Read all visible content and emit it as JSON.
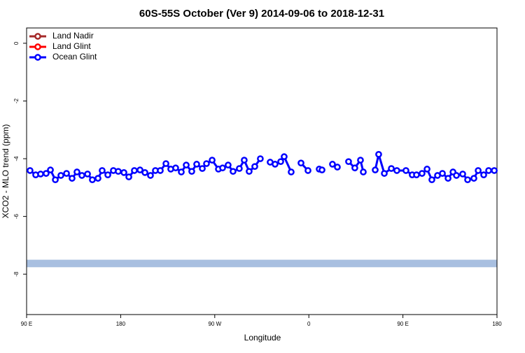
{
  "chart_data": {
    "type": "line",
    "title": "60S-55S October (Ver 9)   2014-09-06 to 2018-12-31",
    "x_label": "Longitude",
    "y_label": "XCO2 - MLO trend (ppm)",
    "xlim": [
      90,
      540
    ],
    "ylim": [
      -9.4,
      0.53
    ],
    "xticks": [
      {
        "value": 90,
        "label": "90 E"
      },
      180,
      {
        "value": 270,
        "label": "90 W"
      },
      {
        "value": 360,
        "label": "0"
      },
      {
        "value": 450,
        "label": "90 E"
      },
      {
        "value": 540,
        "label": "180"
      }
    ],
    "yticks": [
      0,
      -2,
      -4,
      -6,
      -8
    ],
    "legend": "top-left",
    "band": {
      "range": [
        -7.76,
        -7.5
      ],
      "color": "#a8bfe0"
    },
    "series": [
      {
        "name": "Land Nadir",
        "color": "#a52a2a",
        "x": [],
        "values": []
      },
      {
        "name": "Land Glint",
        "color": "#ff0000",
        "x": [],
        "values": []
      },
      {
        "name": "Ocean Glint",
        "color": "#0000ff",
        "x": [
          93.3,
          98.7,
          103.4,
          108.7,
          112.8,
          117.5,
          122.8,
          128.2,
          133.5,
          138.2,
          142.9,
          148.3,
          152.9,
          158.3,
          162.3,
          167.7,
          173,
          177.7,
          183.1,
          187.8,
          193.1,
          198.5,
          203.2,
          208.5,
          213.2,
          217.9,
          223.3,
          227.9,
          232.6,
          238,
          242.7,
          248,
          252.7,
          258.1,
          262.1,
          267.5,
          273.5,
          277.5,
          282.8,
          287.5,
          293.5,
          298.2,
          302.9,
          308.3,
          313.6,
          318,
          323,
          327.7,
          333.1,
          336.4,
          343.1,
          348,
          352.5,
          359.2,
          365,
          369.9,
          372.6,
          377,
          382.6,
          387.3,
          393,
          398,
          404,
          409.4,
          412.1,
          417,
          423.5,
          426.8,
          432.2,
          438.9,
          444.2,
          452.9,
          458.9,
          463,
          468.3,
          473.1,
          477.7,
          483.1,
          487.8,
          493.2,
          497.9,
          501.2,
          507.2,
          511.9,
          517.9,
          522,
          527.3,
          532,
          537.4
        ],
        "values": [
          -4.41,
          -4.56,
          -4.53,
          -4.51,
          -4.39,
          -4.73,
          -4.58,
          -4.51,
          -4.68,
          -4.46,
          -4.58,
          -4.53,
          -4.73,
          -4.68,
          -4.41,
          -4.56,
          -4.41,
          -4.44,
          -4.48,
          -4.63,
          -4.41,
          -4.39,
          -4.48,
          -4.58,
          -4.41,
          -4.41,
          -4.17,
          -4.36,
          -4.32,
          -4.46,
          -4.22,
          -4.44,
          -4.19,
          -4.34,
          -4.17,
          -4.05,
          -4.36,
          -4.32,
          -4.22,
          -4.44,
          -4.34,
          -4.05,
          -4.44,
          -4.27,
          -4.0,
          null,
          -4.12,
          -4.19,
          -4.1,
          -3.93,
          -4.46,
          null,
          -4.15,
          -4.41,
          null,
          -4.36,
          -4.39,
          null,
          -4.19,
          -4.29,
          null,
          -4.1,
          -4.32,
          -4.05,
          -4.46,
          null,
          -4.39,
          -3.85,
          -4.51,
          -4.34,
          -4.41,
          -4.41,
          -4.56,
          -4.56,
          -4.51,
          -4.36,
          -4.73,
          -4.58,
          -4.51,
          -4.68,
          -4.46,
          -4.58,
          -4.53,
          -4.73,
          -4.68,
          -4.41,
          -4.56,
          -4.41,
          -4.41
        ]
      }
    ]
  }
}
